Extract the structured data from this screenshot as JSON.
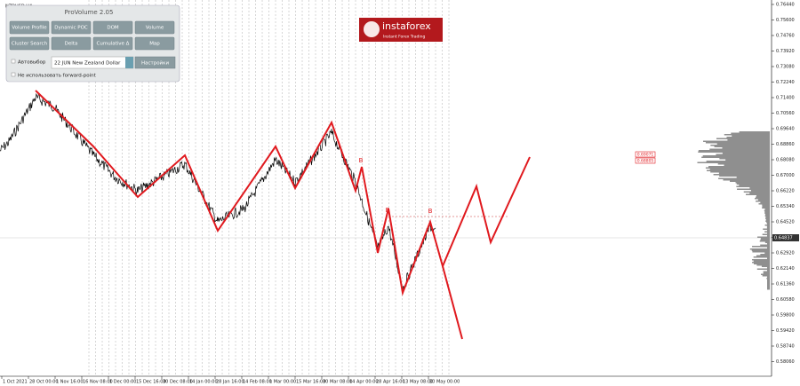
{
  "symbol": "NZDUSD,H4",
  "panel": {
    "title": "ProVolume 2.05",
    "buttons": [
      "Volume Profile",
      "Dynamic POC",
      "DOM",
      "Volume",
      "Cluster Search",
      "Delta",
      "Cumulative Δ",
      "Map"
    ],
    "auto_select": "Автовыбор",
    "instrument": "22 JUN New Zealand Dollar",
    "settings": "Настройки",
    "forward_point": "Не использовать forward-point"
  },
  "logo": {
    "name": "instaforex",
    "tagline": "Instant Forex Trading"
  },
  "price_axis": [
    "0.76440",
    "0.75600",
    "0.74760",
    "0.73920",
    "0.73080",
    "0.72240",
    "0.71400",
    "0.70560",
    "0.69640",
    "0.68860",
    "0.68080",
    "0.67000",
    "0.66220",
    "0.65340",
    "0.64520",
    "0.63700",
    "0.62920",
    "0.62140",
    "0.61360",
    "0.60580",
    "0.59800",
    "0.59420",
    "0.58740",
    "0.58060"
  ],
  "current_price": "0.64837",
  "level_labels": [
    "0.69071",
    "0.68805"
  ],
  "wave_labels": [
    "B",
    "B",
    "B"
  ],
  "time_axis": [
    "1 Oct 2021",
    "28 Oct 00:00",
    "1 Nov 16:00",
    "16 Nov 08:00",
    "1 Dec 00:00",
    "15 Dec 16:00",
    "30 Dec 08:00",
    "14 Jan 00:00",
    "28 Jan 16:00",
    "14 Feb 08:00",
    "1 Mar 00:00",
    "15 Mar 16:00",
    "30 Mar 08:00",
    "14 Apr 00:00",
    "28 Apr 16:00",
    "13 May 08:00",
    "30 May 00:00"
  ]
}
